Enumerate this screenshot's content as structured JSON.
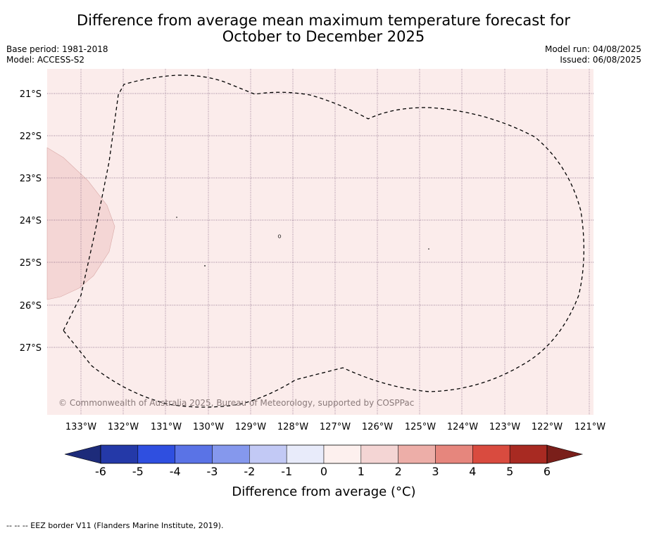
{
  "title_line1": "Difference from average mean maximum temperature forecast for",
  "title_line2": "October to December 2025",
  "base_period": "Base period: 1981-2018",
  "model": "Model: ACCESS-S2",
  "model_run": "Model run: 04/08/2025",
  "issued": "Issued: 06/08/2025",
  "copyright": "© Commonwealth of Australia 2025, Bureau of Meteorology, supported by COSPPac",
  "lat_labels": [
    "21°S",
    "22°S",
    "23°S",
    "24°S",
    "25°S",
    "26°S",
    "27°S"
  ],
  "lon_labels": [
    "133°W",
    "132°W",
    "131°W",
    "130°W",
    "129°W",
    "128°W",
    "127°W",
    "126°W",
    "125°W",
    "124°W",
    "123°W",
    "122°W",
    "121°W"
  ],
  "colorbar": {
    "ticks": [
      "-6",
      "-5",
      "-4",
      "-3",
      "-2",
      "-1",
      "0",
      "1",
      "2",
      "3",
      "4",
      "5",
      "6"
    ],
    "label": "Difference from average ($^\\circ$C)",
    "label_display": "Difference from average (°C)",
    "colors": [
      "#2439a8",
      "#2f4fe0",
      "#5a73e6",
      "#8598ed",
      "#c2c9f5",
      "#e8ebfa",
      "#fdf0ee",
      "#f4d5d4",
      "#edaea8",
      "#e6867d",
      "#d94b3f",
      "#a82a22"
    ],
    "extend_low": "#1d2b7a",
    "extend_high": "#7a1f1a"
  },
  "map_colors": {
    "background": "#fbeceb",
    "region_1_2": "#f4d6d5"
  },
  "footnote": "-- -- -- EEZ border V11 (Flanders Marine Institute, 2019)."
}
